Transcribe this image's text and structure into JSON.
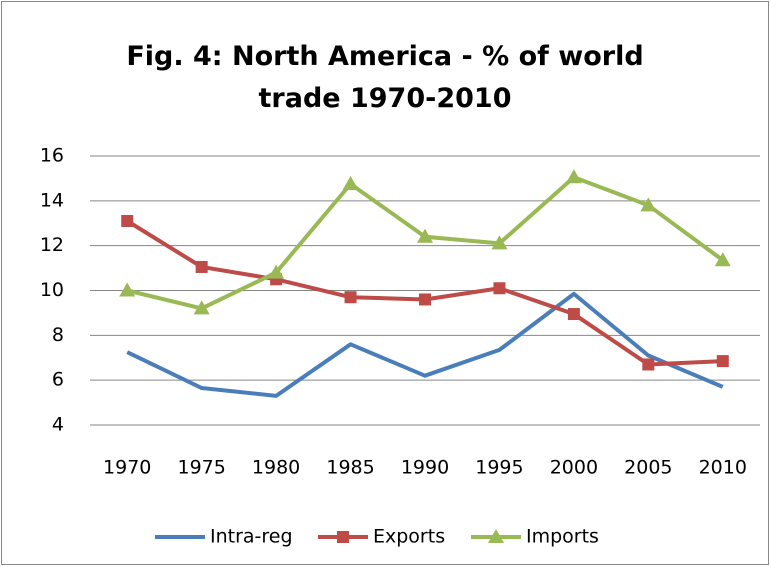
{
  "chart_data": {
    "type": "line",
    "title": "Fig. 4: North America - % of world trade 1970-2010",
    "categories": [
      "1970",
      "1975",
      "1980",
      "1985",
      "1990",
      "1995",
      "2000",
      "2005",
      "2010"
    ],
    "series": [
      {
        "name": "Intra-reg",
        "color": "#4a7ebb",
        "marker": "none",
        "values": [
          7.25,
          5.65,
          5.3,
          7.6,
          6.2,
          7.35,
          9.85,
          7.1,
          5.7
        ]
      },
      {
        "name": "Exports",
        "color": "#be4b48",
        "marker": "square",
        "values": [
          13.1,
          11.05,
          10.5,
          9.7,
          9.6,
          10.1,
          8.95,
          6.7,
          6.85
        ]
      },
      {
        "name": "Imports",
        "color": "#98b954",
        "marker": "triangle",
        "values": [
          10.0,
          9.2,
          10.8,
          14.75,
          12.4,
          12.1,
          15.05,
          13.8,
          11.35
        ]
      }
    ],
    "ylim": [
      4,
      16
    ],
    "yticks": [
      4,
      6,
      8,
      10,
      12,
      14,
      16
    ],
    "grid": true,
    "legend": "bottom"
  }
}
